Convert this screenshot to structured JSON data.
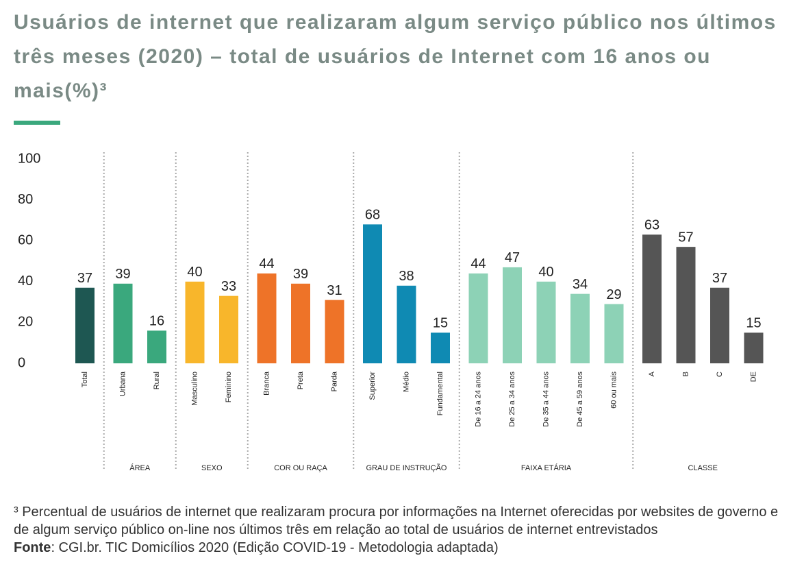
{
  "chart_data": {
    "type": "bar",
    "title": "Usuários de internet que realizaram algum serviço público nos últimos três meses (2020) – total de usuários de Internet com 16 anos ou mais(%)³",
    "categories": [
      "Total",
      "Urbana",
      "Rural",
      "Masculino",
      "Feminino",
      "Branca",
      "Preta",
      "Parda",
      "Superior",
      "Médio",
      "Fundamental",
      "De 16 a 24 anos",
      "De 25 a 34 anos",
      "De 35 a 44 anos",
      "De 45 a 59 anos",
      "60 ou mais",
      "A",
      "B",
      "C",
      "DE"
    ],
    "category_groups": [
      null,
      "ÁREA",
      "ÁREA",
      "SEXO",
      "SEXO",
      "COR OU RAÇA",
      "COR OU RAÇA",
      "COR OU RAÇA",
      "GRAU DE INSTRUÇÃO",
      "GRAU DE INSTRUÇÃO",
      "GRAU DE INSTRUÇÃO",
      "FAIXA ETÁRIA",
      "FAIXA ETÁRIA",
      "FAIXA ETÁRIA",
      "FAIXA ETÁRIA",
      "FAIXA ETÁRIA",
      "CLASSE",
      "CLASSE",
      "CLASSE",
      "CLASSE"
    ],
    "values": [
      37,
      39,
      16,
      40,
      33,
      44,
      39,
      31,
      68,
      38,
      15,
      44,
      47,
      40,
      34,
      29,
      63,
      57,
      37,
      15
    ],
    "colors": [
      "#1e5752",
      "#3aa87d",
      "#3aa87d",
      "#f8b62b",
      "#f8b62b",
      "#ee7328",
      "#ee7328",
      "#ee7328",
      "#0f8ab3",
      "#0f8ab3",
      "#0f8ab3",
      "#8dd2b6",
      "#8dd2b6",
      "#8dd2b6",
      "#8dd2b6",
      "#8dd2b6",
      "#555555",
      "#555555",
      "#555555",
      "#555555"
    ],
    "ylim": [
      0,
      100
    ],
    "yticks": [
      0,
      20,
      40,
      60,
      80,
      100
    ],
    "grid": false,
    "footnote": "³ Percentual de usuários de internet que realizaram procura por informações na Internet oferecidas por websites de governo e de algum serviço público on-line nos últimos três em relação ao total de usuários de internet entrevistados",
    "source_label": "Fonte",
    "source": ": CGI.br. TIC Domicílios 2020 (Edição COVID-19 - Metodologia adaptada)"
  }
}
